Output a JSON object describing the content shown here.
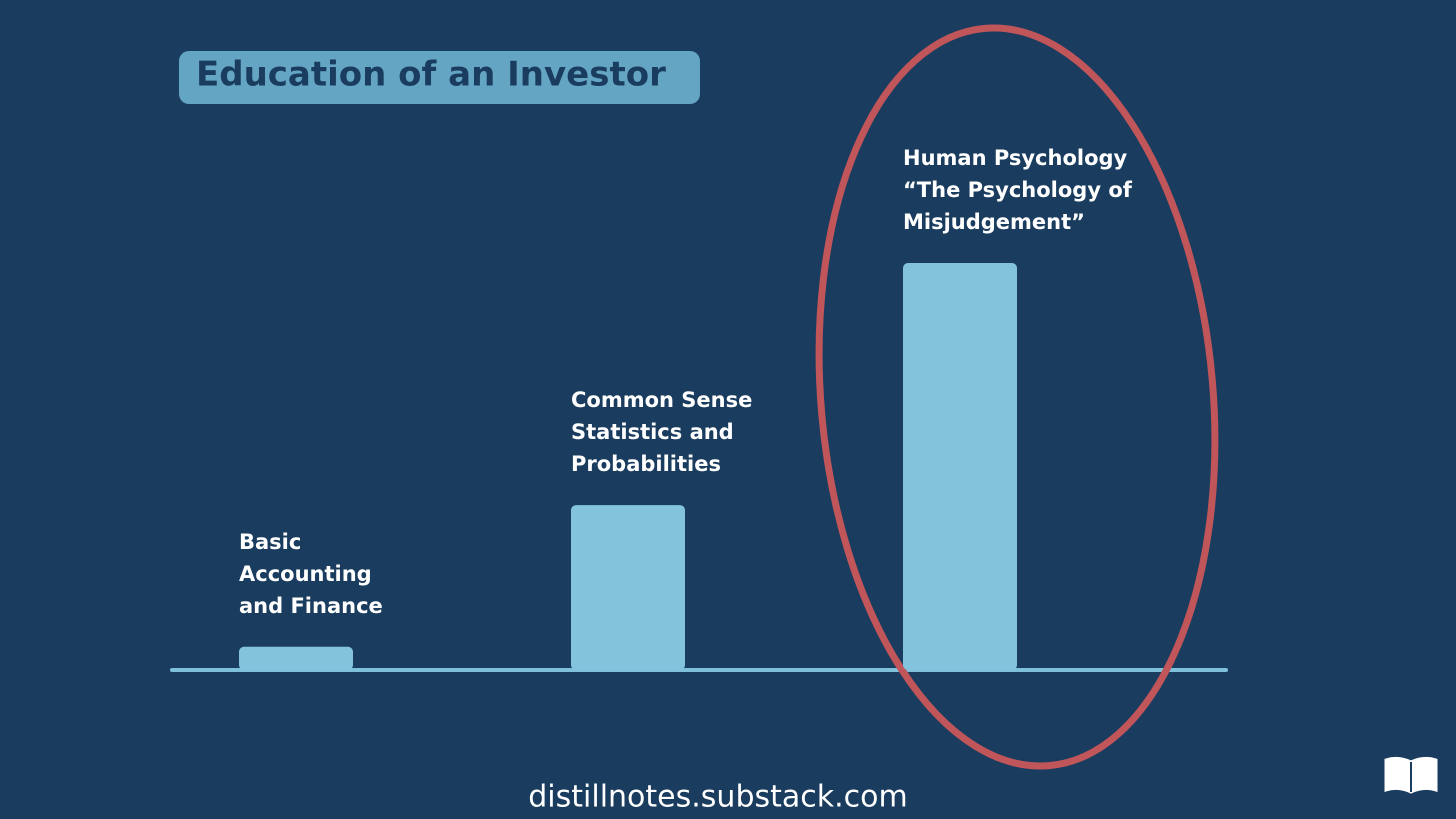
{
  "chart_data": {
    "type": "bar",
    "title": "Education of an Investor",
    "categories": [
      [
        "Basic",
        "Accounting",
        "and Finance"
      ],
      [
        "Common Sense",
        "Statistics and",
        "Probabilities"
      ],
      [
        "Human Psychology",
        "“The Psychology of",
        "Misjudgement”"
      ]
    ],
    "values": [
      5.7,
      40.5,
      100
    ],
    "color": "#84c3dc",
    "ylim": [
      0,
      100
    ],
    "footer": "distillnotes.substack.com"
  }
}
